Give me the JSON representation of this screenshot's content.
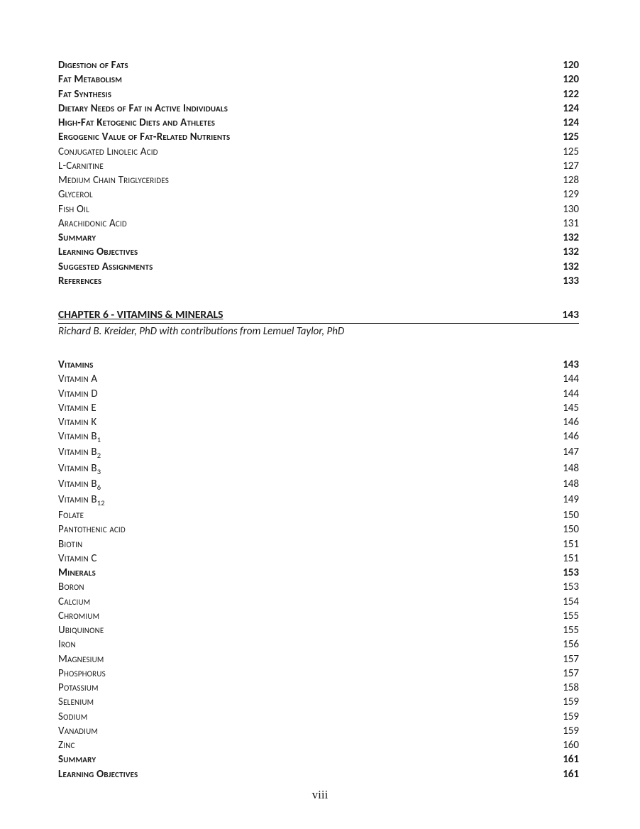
{
  "section_top": [
    {
      "title": "Digestion of Fats",
      "page": "120",
      "bold": true,
      "smallcaps": true
    },
    {
      "title": "Fat Metabolism",
      "page": "120",
      "bold": true,
      "smallcaps": true
    },
    {
      "title": "Fat Synthesis",
      "page": "122",
      "bold": true,
      "smallcaps": true
    },
    {
      "title": "Dietary Needs of Fat in Active Individuals",
      "page": "124",
      "bold": true,
      "smallcaps": true
    },
    {
      "title": "High-Fat Ketogenic Diets and Athletes",
      "page": "124",
      "bold": true,
      "smallcaps": true
    },
    {
      "title": "Ergogenic Value of Fat-Related Nutrients",
      "page": "125",
      "bold": true,
      "smallcaps": true
    },
    {
      "title": "Conjugated Linoleic Acid",
      "page": "125",
      "bold": false,
      "smallcaps": true
    },
    {
      "title": "L-Carnitine",
      "page": "127",
      "bold": false,
      "smallcaps": true
    },
    {
      "title": "Medium Chain Triglycerides",
      "page": "128",
      "bold": false,
      "smallcaps": true
    },
    {
      "title": "Glycerol",
      "page": "129",
      "bold": false,
      "smallcaps": true
    },
    {
      "title": "Fish Oil",
      "page": "130",
      "bold": false,
      "smallcaps": true
    },
    {
      "title": "Arachidonic Acid",
      "page": "131",
      "bold": false,
      "smallcaps": true
    },
    {
      "title": "Summary",
      "page": "132",
      "bold": true,
      "smallcaps": true
    },
    {
      "title": "Learning Objectives",
      "page": "132",
      "bold": true,
      "smallcaps": true
    },
    {
      "title": "Suggested Assignments",
      "page": "132",
      "bold": true,
      "smallcaps": true
    },
    {
      "title": "References",
      "page": "133",
      "bold": true,
      "smallcaps": true
    }
  ],
  "chapter": {
    "title": "CHAPTER 6 - VITAMINS & MINERALS",
    "page": "143",
    "byline": "Richard B. Kreider, PhD with contributions from Lemuel Taylor, PhD"
  },
  "section_bottom": [
    {
      "title": "Vitamins",
      "page": "143",
      "bold": true,
      "smallcaps": true
    },
    {
      "title": "Vitamin A",
      "page": "144",
      "bold": false,
      "smallcaps": true
    },
    {
      "title": "Vitamin D",
      "page": "144",
      "bold": false,
      "smallcaps": true
    },
    {
      "title": "Vitamin E",
      "page": "145",
      "bold": false,
      "smallcaps": true
    },
    {
      "title": "Vitamin K",
      "page": "146",
      "bold": false,
      "smallcaps": true
    },
    {
      "title": "Vitamin B",
      "sub": "1",
      "page": "146",
      "bold": false,
      "smallcaps": true
    },
    {
      "title": "Vitamin B",
      "sub": "2",
      "page": "147",
      "bold": false,
      "smallcaps": true
    },
    {
      "title": "Vitamin B",
      "sub": "3",
      "page": "148",
      "bold": false,
      "smallcaps": true
    },
    {
      "title": "Vitamin B",
      "sub": "6",
      "page": "148",
      "bold": false,
      "smallcaps": true
    },
    {
      "title": "Vitamin B",
      "sub": "12",
      "page": "149",
      "bold": false,
      "smallcaps": true
    },
    {
      "title": "Folate",
      "page": "150",
      "bold": false,
      "smallcaps": true
    },
    {
      "title": "Pantothenic acid",
      "page": "150",
      "bold": false,
      "smallcaps": true
    },
    {
      "title": "Biotin",
      "page": "151",
      "bold": false,
      "smallcaps": true
    },
    {
      "title": "Vitamin C",
      "page": "151",
      "bold": false,
      "smallcaps": true
    },
    {
      "title": "Minerals",
      "page": "153",
      "bold": true,
      "smallcaps": true
    },
    {
      "title": "Boron",
      "page": "153",
      "bold": false,
      "smallcaps": true
    },
    {
      "title": "Calcium",
      "page": "154",
      "bold": false,
      "smallcaps": true
    },
    {
      "title": "Chromium",
      "page": "155",
      "bold": false,
      "smallcaps": true
    },
    {
      "title": "Ubiquinone",
      "page": "155",
      "bold": false,
      "smallcaps": true
    },
    {
      "title": "Iron",
      "page": "156",
      "bold": false,
      "smallcaps": true
    },
    {
      "title": "Magnesium",
      "page": "157",
      "bold": false,
      "smallcaps": true
    },
    {
      "title": "Phosphorus",
      "page": "157",
      "bold": false,
      "smallcaps": true
    },
    {
      "title": "Potassium",
      "page": "158",
      "bold": false,
      "smallcaps": true
    },
    {
      "title": "Selenium",
      "page": "159",
      "bold": false,
      "smallcaps": true
    },
    {
      "title": "Sodium",
      "page": "159",
      "bold": false,
      "smallcaps": true
    },
    {
      "title": "Vanadium",
      "page": "159",
      "bold": false,
      "smallcaps": true
    },
    {
      "title": "Zinc",
      "page": "160",
      "bold": false,
      "smallcaps": true
    },
    {
      "title": "Summary",
      "page": "161",
      "bold": true,
      "smallcaps": true
    },
    {
      "title": "Learning Objectives",
      "page": "161",
      "bold": true,
      "smallcaps": true
    }
  ],
  "page_number": "viii"
}
